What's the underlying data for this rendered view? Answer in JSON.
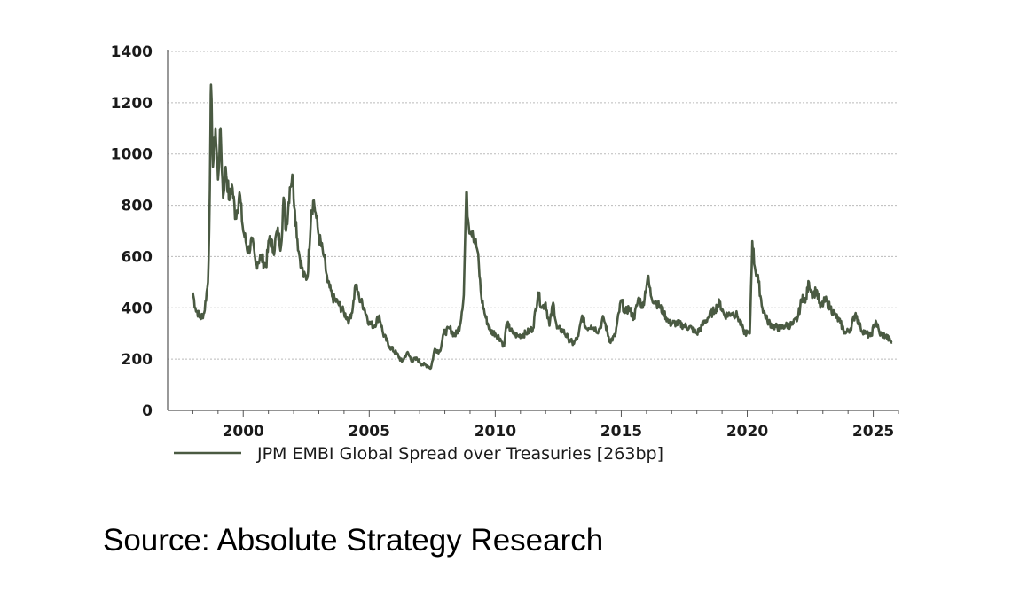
{
  "chart_data": {
    "type": "line",
    "title": "",
    "xlabel": "",
    "ylabel": "",
    "ylim": [
      0,
      1400
    ],
    "xlim": [
      1997,
      2026
    ],
    "yticks": [
      0,
      200,
      400,
      600,
      800,
      1000,
      1200,
      1400
    ],
    "xticks": [
      2000,
      2005,
      2010,
      2015,
      2020,
      2025
    ],
    "grid": true,
    "legend_position": "bottom",
    "series": [
      {
        "name": "JPM EMBI Global Spread over Treasuries [263bp]",
        "color": "#4a5a42",
        "x": [
          1998.0,
          1998.1,
          1998.3,
          1998.45,
          1998.6,
          1998.65,
          1998.7,
          1998.72,
          1998.8,
          1998.9,
          1999.0,
          1999.1,
          1999.2,
          1999.3,
          1999.45,
          1999.55,
          1999.7,
          1999.85,
          2000.0,
          2000.2,
          2000.35,
          2000.5,
          2000.7,
          2000.9,
          2001.05,
          2001.2,
          2001.35,
          2001.5,
          2001.6,
          2001.7,
          2001.85,
          2001.95,
          2002.05,
          2002.2,
          2002.4,
          2002.55,
          2002.7,
          2002.8,
          2002.9,
          2003.0,
          2003.2,
          2003.35,
          2003.55,
          2003.75,
          2004.0,
          2004.2,
          2004.35,
          2004.45,
          2004.6,
          2004.8,
          2005.0,
          2005.2,
          2005.4,
          2005.55,
          2005.8,
          2006.1,
          2006.3,
          2006.5,
          2006.7,
          2006.9,
          2007.1,
          2007.3,
          2007.45,
          2007.6,
          2007.8,
          2007.95,
          2008.2,
          2008.4,
          2008.6,
          2008.75,
          2008.85,
          2008.95,
          2009.1,
          2009.3,
          2009.45,
          2009.6,
          2009.8,
          2010.0,
          2010.2,
          2010.35,
          2010.45,
          2010.7,
          2010.9,
          2011.2,
          2011.5,
          2011.7,
          2011.85,
          2012.0,
          2012.15,
          2012.3,
          2012.45,
          2012.7,
          2012.9,
          2013.1,
          2013.3,
          2013.45,
          2013.6,
          2013.8,
          2014.1,
          2014.3,
          2014.55,
          2014.75,
          2015.0,
          2015.15,
          2015.3,
          2015.5,
          2015.7,
          2015.85,
          2016.05,
          2016.2,
          2016.4,
          2016.7,
          2016.9,
          2017.2,
          2017.5,
          2017.8,
          2018.0,
          2018.2,
          2018.5,
          2018.7,
          2018.9,
          2019.1,
          2019.4,
          2019.6,
          2019.85,
          2020.0,
          2020.1,
          2020.2,
          2020.3,
          2020.45,
          2020.6,
          2020.8,
          2021.0,
          2021.3,
          2021.5,
          2021.8,
          2022.0,
          2022.2,
          2022.3,
          2022.45,
          2022.6,
          2022.75,
          2022.9,
          2023.1,
          2023.3,
          2023.5,
          2023.7,
          2023.9,
          2024.1,
          2024.3,
          2024.5,
          2024.7,
          2024.9,
          2025.1,
          2025.25,
          2025.5,
          2025.75
        ],
        "values": [
          460,
          400,
          360,
          380,
          500,
          700,
          1100,
          1270,
          950,
          1100,
          900,
          1100,
          830,
          950,
          820,
          880,
          750,
          850,
          700,
          620,
          660,
          570,
          600,
          560,
          680,
          620,
          700,
          640,
          830,
          700,
          870,
          920,
          780,
          620,
          520,
          520,
          780,
          820,
          750,
          680,
          600,
          500,
          440,
          420,
          380,
          350,
          400,
          490,
          440,
          400,
          340,
          330,
          370,
          300,
          250,
          220,
          190,
          225,
          195,
          200,
          180,
          175,
          165,
          240,
          230,
          300,
          320,
          290,
          330,
          450,
          850,
          720,
          700,
          620,
          440,
          370,
          310,
          300,
          280,
          250,
          340,
          300,
          290,
          300,
          320,
          460,
          400,
          420,
          330,
          420,
          320,
          310,
          280,
          260,
          290,
          370,
          320,
          330,
          310,
          360,
          270,
          290,
          430,
          380,
          400,
          360,
          440,
          400,
          520,
          440,
          420,
          380,
          340,
          340,
          330,
          320,
          300,
          330,
          370,
          390,
          420,
          370,
          380,
          370,
          310,
          300,
          300,
          660,
          560,
          500,
          400,
          350,
          330,
          320,
          330,
          335,
          360,
          450,
          420,
          500,
          450,
          470,
          400,
          430,
          400,
          370,
          340,
          300,
          320,
          380,
          320,
          300,
          290,
          350,
          300,
          290,
          265
        ]
      }
    ]
  },
  "source": "Source: Absolute Strategy Research"
}
